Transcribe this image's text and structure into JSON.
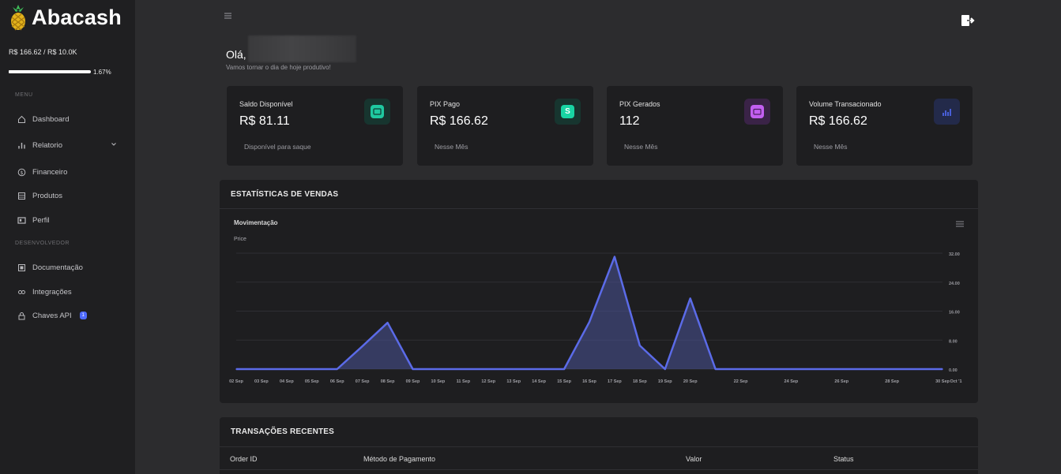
{
  "app": {
    "name": "Abacash"
  },
  "sidebar": {
    "balance": "R$ 166.62 / R$ 10.0K",
    "progress": {
      "label": "1.67%",
      "fraction": 0.0167
    },
    "menu_title": "MENU",
    "dev_title": "DESENVOLVEDOR",
    "items": [
      {
        "label": "Dashboard",
        "icon": "home-icon"
      },
      {
        "label": "Relatorio",
        "icon": "bar-chart-icon"
      },
      {
        "label": "Financeiro",
        "icon": "dollar-circle-icon"
      },
      {
        "label": "Produtos",
        "icon": "box-icon"
      },
      {
        "label": "Perfil",
        "icon": "id-card-icon"
      }
    ],
    "dev_items": [
      {
        "label": "Documentação",
        "icon": "document-icon"
      },
      {
        "label": "Integrações",
        "icon": "link-icon"
      },
      {
        "label": "Chaves API",
        "icon": "lock-icon",
        "badge": "1"
      }
    ]
  },
  "header": {
    "greeting": "Olá,",
    "subtitle": "Vamos tornar o dia de hoje produtivo!"
  },
  "cards": [
    {
      "title": "Saldo Disponível",
      "value": "R$ 81.11",
      "sub": "Disponível para saque",
      "icon": "wallet-icon",
      "color": "#1fc8a0",
      "bg": "#17352f"
    },
    {
      "title": "PIX Pago",
      "value": "R$ 166.62",
      "sub": "Nesse Mês",
      "icon": "dollar-icon",
      "color": "#19d4a3",
      "bg": "#17352f",
      "glyph": "S"
    },
    {
      "title": "PIX Gerados",
      "value": "112",
      "sub": "Nesse Mês",
      "icon": "calendar-icon",
      "color": "#c25ff0",
      "bg": "#3a2347"
    },
    {
      "title": "Volume Transacionado",
      "value": "R$ 166.62",
      "sub": "Nesse Mês",
      "icon": "bar-chart-icon",
      "color": "#4d64e6",
      "bg": "#232a4a"
    }
  ],
  "stats_panel": {
    "title": "ESTATÍSTICAS DE VENDAS",
    "chart_title": "Movimentação",
    "series_label": "Price"
  },
  "transactions": {
    "title": "TRANSAÇÕES RECENTES",
    "columns": [
      "Order ID",
      "Método de Pagamento",
      "Valor",
      "Status"
    ]
  },
  "colors": {
    "accent": "#5b6be8",
    "sidebar_bg": "#1f1f21",
    "page_bg": "#2c2c2e",
    "card_bg": "#1e1e20"
  },
  "chart_data": {
    "type": "area",
    "title": "Movimentação",
    "ylabel": "Price",
    "x": [
      "02 Sep",
      "03 Sep",
      "04 Sep",
      "05 Sep",
      "06 Sep",
      "07 Sep",
      "08 Sep",
      "09 Sep",
      "10 Sep",
      "11 Sep",
      "12 Sep",
      "13 Sep",
      "14 Sep",
      "15 Sep",
      "16 Sep",
      "17 Sep",
      "18 Sep",
      "19 Sep",
      "20 Sep",
      "21 Sep",
      "22 Sep",
      "23 Sep",
      "24 Sep",
      "25 Sep",
      "26 Sep",
      "27 Sep",
      "28 Sep",
      "29 Sep",
      "30 Sep"
    ],
    "values": [
      0,
      0,
      0,
      0,
      0,
      6.3,
      12.8,
      0,
      0,
      0,
      0,
      0,
      0,
      0,
      13,
      31,
      6.5,
      0,
      19.5,
      0,
      0,
      0,
      0,
      0,
      0,
      0,
      0,
      0,
      0
    ],
    "tick_labels": [
      "02 Sep",
      "03 Sep",
      "04 Sep",
      "05 Sep",
      "06 Sep",
      "07 Sep",
      "08 Sep",
      "09 Sep",
      "10 Sep",
      "11 Sep",
      "12 Sep",
      "13 Sep",
      "14 Sep",
      "15 Sep",
      "16 Sep",
      "17 Sep",
      "18 Sep",
      "19 Sep",
      "20 Sep",
      "22 Sep",
      "24 Sep",
      "26 Sep",
      "28 Sep",
      "30 Sep",
      "Oct '1"
    ],
    "y_ticks": [
      "32.00",
      "24.00",
      "16.00",
      "8.00",
      "0.00"
    ],
    "ylim": [
      0,
      32
    ],
    "grid": true,
    "axis_side": "right"
  }
}
